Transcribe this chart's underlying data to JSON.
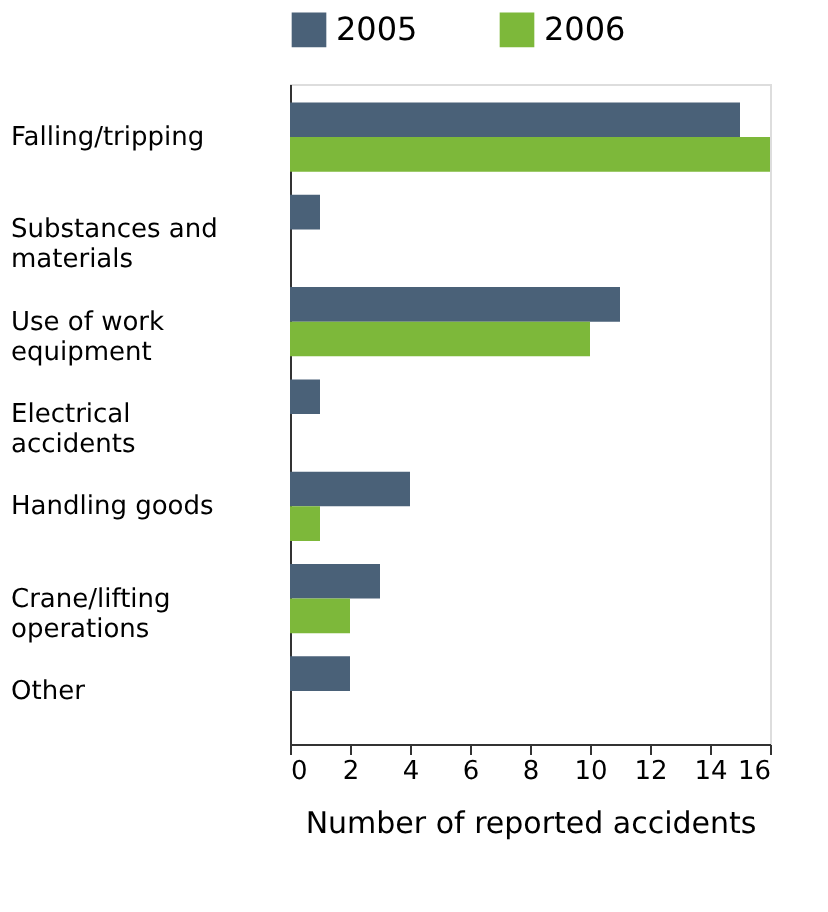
{
  "chart_data": {
    "type": "bar",
    "orientation": "horizontal",
    "xlabel": "Number of reported accidents",
    "categories": [
      "Falling/tripping",
      "Substances and materials",
      "Use of work equipment",
      "Electrical accidents",
      "Handling goods",
      "Crane/lifting operations",
      "Other"
    ],
    "series": [
      {
        "name": "2005",
        "color": "#4a6178",
        "values": [
          15,
          1,
          11,
          1,
          4,
          3,
          2
        ]
      },
      {
        "name": "2006",
        "color": "#7db83a",
        "values": [
          16,
          0,
          10,
          0,
          1,
          2,
          0
        ]
      }
    ],
    "xlim": [
      0,
      16
    ],
    "xticks": [
      0,
      2,
      4,
      6,
      8,
      10,
      12,
      14,
      16
    ],
    "grid": false,
    "legend": "top"
  }
}
